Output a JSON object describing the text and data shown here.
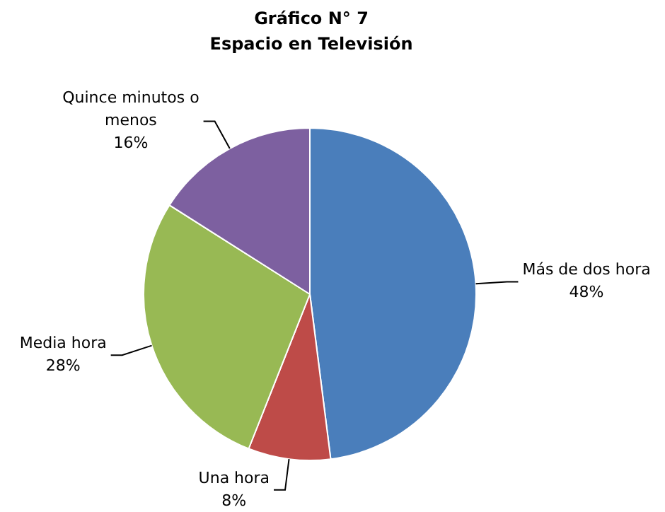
{
  "chart_data": {
    "type": "pie",
    "title": "Gráfico N° 7",
    "subtitle": "Espacio en Televisión",
    "categories": [
      "Más de dos hora",
      "Una hora",
      "Media hora",
      "Quince minutos o menos"
    ],
    "values": [
      48,
      8,
      28,
      16
    ],
    "colors": [
      "#4a7ebb",
      "#be4b48",
      "#98b954",
      "#7d60a0"
    ],
    "value_labels": [
      "48%",
      "8%",
      "28%",
      "16%"
    ],
    "legend": false
  }
}
